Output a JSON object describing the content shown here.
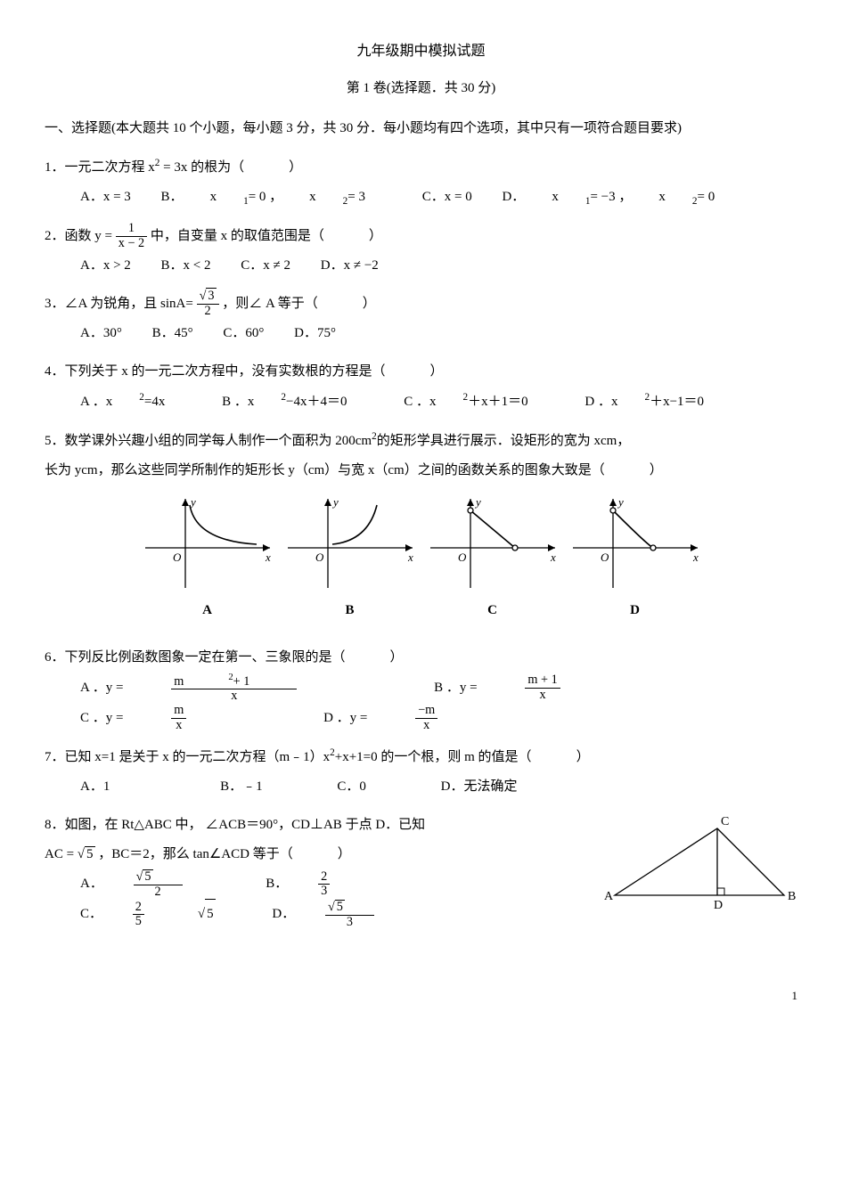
{
  "title": "九年级期中模拟试题",
  "subtitle": "第 1 卷(选择题．共 30 分)",
  "section_intro": "一、选择题(本大题共 10 个小题，每小题 3 分，共 30 分．每小题均有四个选项，其中只有一项符合题目要求)",
  "q1": {
    "stem_prefix": "1．一元二次方程",
    "stem_suffix": "的根为（",
    "eq_lhs": "x",
    "eq_exp": "2",
    "eq_rhs": " = 3x",
    "A": "A．x = 3",
    "B_prefix": "B．",
    "B_x1": "x",
    "B_s1": "1",
    "B_eq1": " = 0 ，",
    "B_x2": "x",
    "B_s2": "2",
    "B_eq2": " = 3",
    "C": "C．x = 0",
    "D_prefix": "D．",
    "D_x1": "x",
    "D_s1": "1",
    "D_eq1": " = −3 ，",
    "D_x2": "x",
    "D_s2": "2",
    "D_eq2": " = 0"
  },
  "q2": {
    "stem_prefix": "2．函数 y = ",
    "num": "1",
    "den": "x − 2",
    "stem_suffix": " 中，自变量 x  的取值范围是（",
    "A": "A．x > 2",
    "B": "B．x < 2",
    "C": "C．x ≠ 2",
    "D": "D．x ≠ −2"
  },
  "q3": {
    "stem_prefix": "3．∠A 为锐角，且 sinA= ",
    "num": "√3",
    "den": "2",
    "stem_suffix": "  ，则∠ A 等于（",
    "A": "A．30°",
    "B": "B．45°",
    "C": "C．60°",
    "D": "D．75°"
  },
  "q4": {
    "stem": "4．下列关于 x 的一元二次方程中，没有实数根的方程是（",
    "A_pre": "A ．x",
    "A_exp": "2",
    "A_post": "=4x",
    "B_pre": "B ．x",
    "B_exp": "2",
    "B_post": "−4x＋4＝0",
    "C_pre": "C ．x",
    "C_exp": "2",
    "C_post": "＋x＋1＝0",
    "D_pre": "D ．x",
    "D_exp": "2",
    "D_post": "＋x−1＝0"
  },
  "q5": {
    "line1_pre": "5．数学课外兴趣小组的同学每人制作一个面积为 200cm",
    "line1_exp": "2",
    "line1_post": "的矩形学具进行展示．设矩形的宽为 xcm，",
    "line2": "长为 ycm，那么这些同学所制作的矩形长 y（cm）与宽 x（cm）之间的函数关系的图象大致是（",
    "labels": {
      "A": "A",
      "B": "B",
      "C": "C",
      "D": "D"
    }
  },
  "q6": {
    "stem": "6．下列反比例函数图象一定在第一、三象限的是（",
    "A_label": "A ．y = ",
    "A_num_pre": "m",
    "A_num_exp": "2",
    "A_num_post": " + 1",
    "A_den": "x",
    "B_label": "B ．y = ",
    "B_num": "m + 1",
    "B_den": "x",
    "C_label": "C ．y = ",
    "C_num": "m",
    "C_den": "x",
    "D_label": "D ．y = ",
    "D_num": "−m",
    "D_den": "x"
  },
  "q7": {
    "stem_pre": "7．已知 x=1 是关于 x 的一元二次方程（m﹣1）x",
    "stem_exp": "2",
    "stem_post": "+x+1=0 的一个根，则 m 的值是（",
    "A": "A．1",
    "B": "B．﹣1",
    "C": "C．0",
    "D": "D．无法确定"
  },
  "q8": {
    "line1": "8．如图，在 Rt△ABC 中， ∠ACB＝90°，CD⊥AB 于点 D．已知",
    "line2_pre": "AC = ",
    "line2_sqrt": "5",
    "line2_post": " ，BC＝2，那么 tan∠ACD 等于（",
    "A_label": "A．",
    "A_num": "√5",
    "A_den": "2",
    "B_label": "B．",
    "B_num": "2",
    "B_den": "3",
    "C_label": "C．",
    "C_num": "2",
    "C_den": "5",
    "C_sqrt": "5",
    "D_label": "D．",
    "D_num": "√5",
    "D_den": "3",
    "tri": {
      "A": "A",
      "B": "B",
      "C": "C",
      "D": "D"
    }
  },
  "graph_axes": {
    "x": "x",
    "y": "y",
    "O": "O"
  },
  "graph_style": {
    "stroke": "#000000",
    "stroke_width": 1.3,
    "curve_width": 1.6,
    "fill_hollow": "#ffffff"
  },
  "page_number": "1",
  "close_paren": "）"
}
